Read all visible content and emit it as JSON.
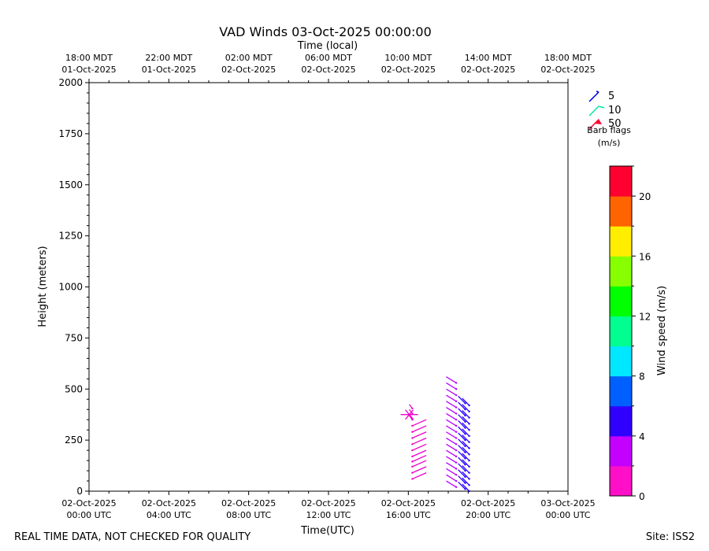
{
  "chart_data": {
    "type": "vad_wind_barbs",
    "title": "VAD Winds 03-Oct-2025 00:00:00",
    "top_axis_label": "Time (local)",
    "xlabel": "Time(UTC)",
    "ylabel": "Height (meters)",
    "footer_left": "REAL TIME DATA, NOT CHECKED FOR QUALITY",
    "footer_right": "Site: ISS2",
    "xlim_hours": [
      0,
      24
    ],
    "ylim": [
      0,
      2000
    ],
    "y_ticks": [
      0,
      250,
      500,
      750,
      1000,
      1250,
      1500,
      1750,
      2000
    ],
    "x_ticks": [
      {
        "h": 0,
        "date": "02-Oct-2025",
        "time": "00:00 UTC"
      },
      {
        "h": 4,
        "date": "02-Oct-2025",
        "time": "04:00 UTC"
      },
      {
        "h": 8,
        "date": "02-Oct-2025",
        "time": "08:00 UTC"
      },
      {
        "h": 12,
        "date": "02-Oct-2025",
        "time": "12:00 UTC"
      },
      {
        "h": 16,
        "date": "02-Oct-2025",
        "time": "16:00 UTC"
      },
      {
        "h": 20,
        "date": "02-Oct-2025",
        "time": "20:00 UTC"
      },
      {
        "h": 24,
        "date": "03-Oct-2025",
        "time": "00:00 UTC"
      }
    ],
    "top_ticks": [
      {
        "h": 0,
        "time": "18:00 MDT",
        "date": "01-Oct-2025"
      },
      {
        "h": 4,
        "time": "22:00 MDT",
        "date": "01-Oct-2025"
      },
      {
        "h": 8,
        "time": "02:00 MDT",
        "date": "02-Oct-2025"
      },
      {
        "h": 12,
        "time": "06:00 MDT",
        "date": "02-Oct-2025"
      },
      {
        "h": 16,
        "time": "10:00 MDT",
        "date": "02-Oct-2025"
      },
      {
        "h": 20,
        "time": "14:00 MDT",
        "date": "02-Oct-2025"
      },
      {
        "h": 24,
        "time": "18:00 MDT",
        "date": "02-Oct-2025"
      }
    ],
    "barb_legend": {
      "entries": [
        {
          "label": "5",
          "color": "#0000dd"
        },
        {
          "label": "10",
          "color": "#00e8a0"
        },
        {
          "label": "50",
          "color": "#ff0030"
        }
      ],
      "title_line1": "Barb flags",
      "title_line2": "(m/s)"
    },
    "colorbar": {
      "label": "Wind speed (m/s)",
      "min": 0,
      "max": 22,
      "ticks": [
        0,
        4,
        8,
        12,
        16,
        20
      ],
      "colors": [
        "#ff10c8",
        "#c400ff",
        "#3000ff",
        "#0060ff",
        "#00e8ff",
        "#00ff90",
        "#00ff00",
        "#88ff00",
        "#ffee00",
        "#ff6400",
        "#ff0030"
      ]
    },
    "series": [
      {
        "x_hour": 16.2,
        "color": "#ee00cc",
        "heights": [
          60,
          90,
          120,
          145,
          170,
          200,
          230,
          260,
          290,
          320
        ],
        "barb_dx": 0.7,
        "barb_dy": 30
      },
      {
        "x_hour": 16.2,
        "color": "#ee00cc",
        "heights": [
          350,
          380,
          405
        ],
        "barb_dx": -0.15,
        "barb_dy": 20
      },
      {
        "x_hour": 18.4,
        "color": "#b800ff",
        "heights": [
          20,
          50,
          80,
          110,
          140,
          170,
          200,
          230,
          260,
          290,
          320,
          350,
          380,
          410,
          440,
          470,
          500,
          530
        ],
        "barb_dx": -0.5,
        "barb_dy": 30
      },
      {
        "x_hour": 18.85,
        "color": "#2a00ff",
        "heights": [
          10,
          40,
          70,
          100,
          130,
          160,
          190,
          220,
          250,
          280,
          310,
          340,
          370,
          400,
          430
        ],
        "barb_dx": -0.35,
        "barb_dy": 35
      },
      {
        "x_hour": 19.05,
        "color": "#3000ff",
        "heights": [
          0,
          30,
          60,
          90,
          120,
          150,
          180,
          210,
          240,
          270,
          300,
          330,
          360,
          390,
          420
        ],
        "barb_dx": -0.35,
        "barb_dy": 35
      }
    ]
  }
}
